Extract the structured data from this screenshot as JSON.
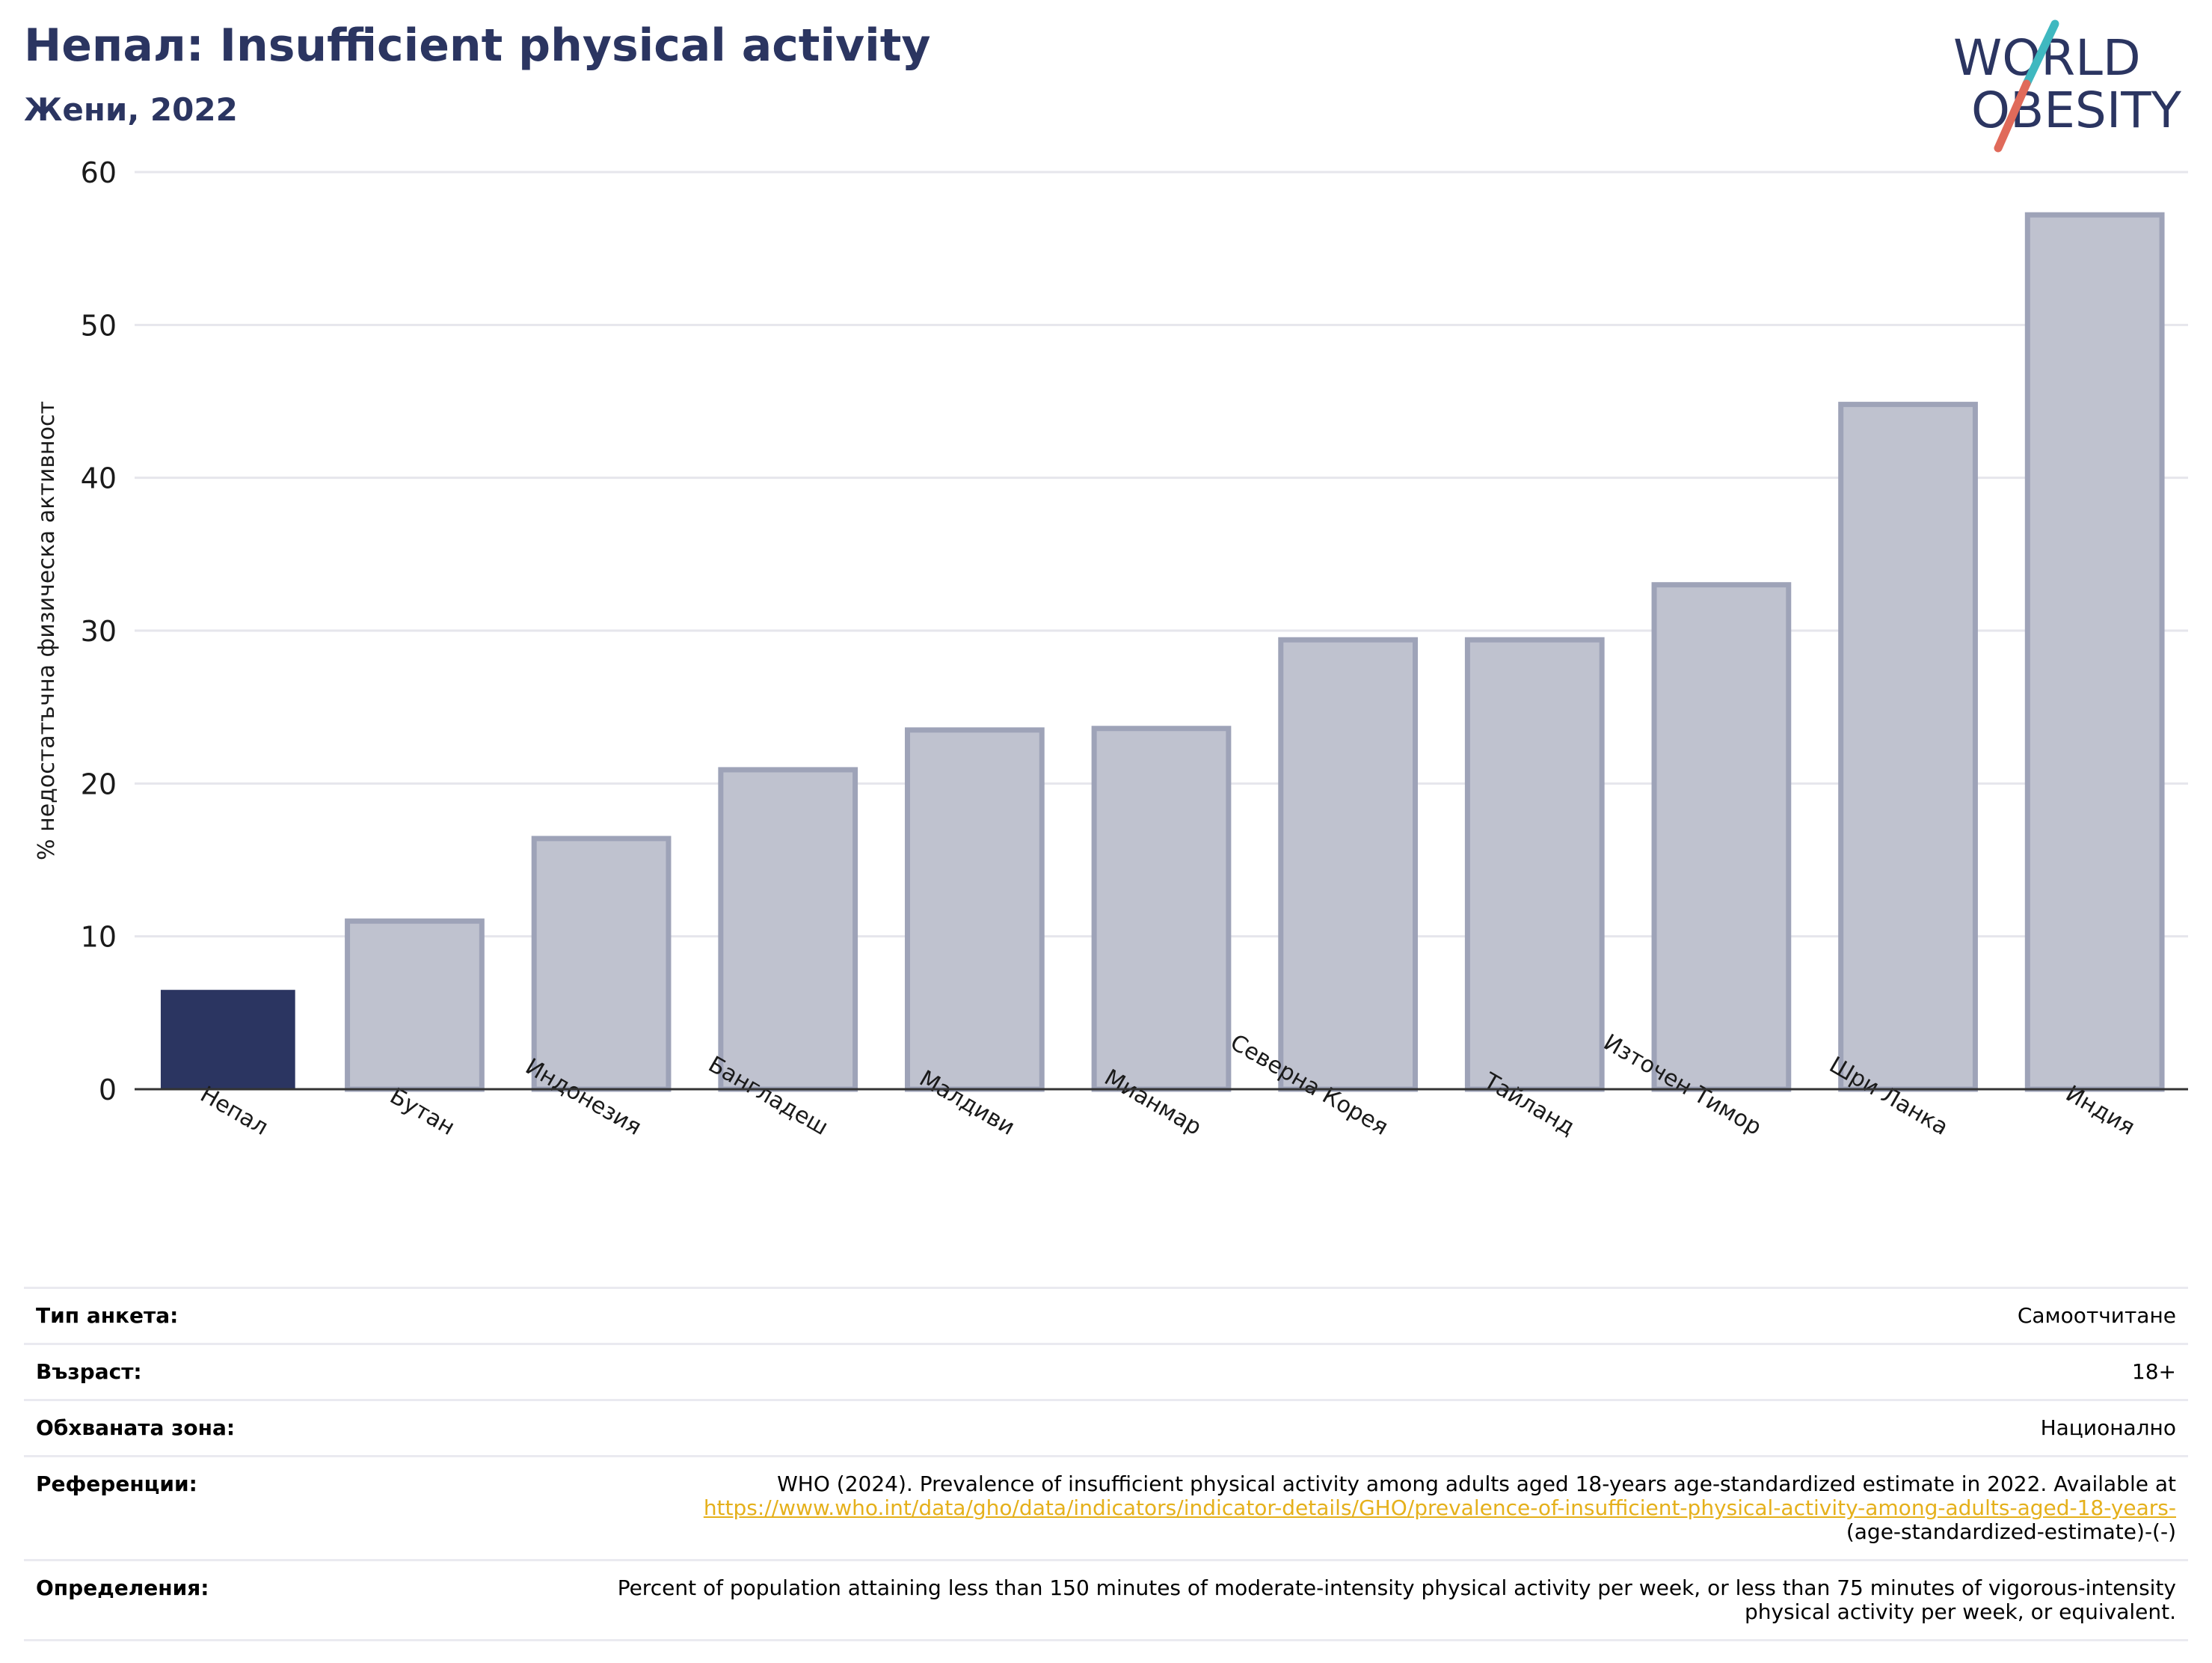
{
  "header": {
    "title": "Непал: Insufficient physical activity",
    "subtitle": "Жени, 2022"
  },
  "logo": {
    "line1": "WORLD",
    "line2": "OBESITY"
  },
  "colors": {
    "title": "#2b3561",
    "highlight_bar": "#2b3561",
    "other_bar_fill": "#bfc2cf",
    "other_bar_stroke": "#9ea3b8",
    "logo_teal": "#3fb8c0",
    "logo_coral": "#e06a5a",
    "link": "#e5b01b"
  },
  "chart_data": {
    "type": "bar",
    "title": "Непал: Insufficient physical activity",
    "subtitle": "Жени, 2022",
    "categories": [
      "Непал",
      "Бутан",
      "Индонезия",
      "Бангладеш",
      "Малдиви",
      "Мианмар",
      "Северна Корея",
      "Тайланд",
      "Източен Тимор",
      "Шри Ланка",
      "Индия"
    ],
    "values": [
      6.5,
      11.0,
      16.4,
      20.9,
      23.5,
      23.6,
      29.4,
      29.4,
      33.0,
      44.8,
      57.2
    ],
    "highlight": "Непал",
    "xlabel": "",
    "ylabel": "% недостатъчна физическа активност",
    "ylim": [
      0,
      60
    ],
    "yticks": [
      0,
      10,
      20,
      30,
      40,
      50,
      60
    ],
    "grid": true
  },
  "info": {
    "rows": [
      {
        "label": "Тип анкета:",
        "value": "Самоотчитане"
      },
      {
        "label": "Възраст:",
        "value": "18+"
      },
      {
        "label": "Обхваната зона:",
        "value": "Национално"
      }
    ],
    "references": {
      "label": "Референции:",
      "text": "WHO (2024). Prevalence of insufficient physical activity among adults aged 18-years age-standardized estimate in 2022. Available at",
      "link": "https://www.who.int/data/gho/data/indicators/indicator-details/GHO/prevalence-of-insufficient-physical-activity-among-adults-aged-18-years-",
      "suffix": "(age-standardized-estimate)-(-)"
    },
    "definitions": {
      "label": "Определения:",
      "text": "Percent of population attaining less than 150 minutes of moderate-intensity physical activity per week, or less than 75 minutes of vigorous-intensity physical activity per week, or equivalent."
    }
  }
}
